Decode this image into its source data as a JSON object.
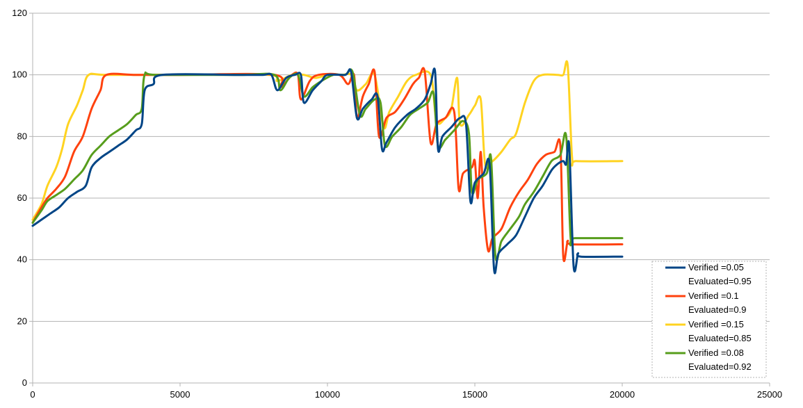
{
  "chart_data": {
    "type": "line",
    "title": "",
    "xlabel": "",
    "ylabel": "",
    "xlim": [
      0,
      25000
    ],
    "ylim": [
      0,
      120
    ],
    "xticks": [
      0,
      5000,
      10000,
      15000,
      20000,
      25000
    ],
    "yticks": [
      0,
      20,
      40,
      60,
      80,
      100,
      120
    ],
    "x_tick_labels": [
      "0",
      "5000",
      "10000",
      "15000",
      "20000",
      "25000"
    ],
    "y_tick_labels": [
      "0",
      "20",
      "40",
      "60",
      "80",
      "100",
      "120"
    ],
    "grid": "horizontal",
    "legend_position": "bottom-right",
    "series": [
      {
        "name_line1": "Verified =0.05",
        "name_line2": "Evaluated=0.95",
        "color": "#004586",
        "points": [
          [
            0,
            51
          ],
          [
            300,
            53
          ],
          [
            600,
            55
          ],
          [
            900,
            57
          ],
          [
            1200,
            60
          ],
          [
            1500,
            62
          ],
          [
            1800,
            64
          ],
          [
            2000,
            70
          ],
          [
            2300,
            73
          ],
          [
            2600,
            75
          ],
          [
            2900,
            77
          ],
          [
            3200,
            79
          ],
          [
            3500,
            82
          ],
          [
            3700,
            84
          ],
          [
            3800,
            95
          ],
          [
            4100,
            97
          ],
          [
            4400,
            100
          ],
          [
            7000,
            100
          ],
          [
            7800,
            100
          ],
          [
            8100,
            100
          ],
          [
            8300,
            95
          ],
          [
            8600,
            99
          ],
          [
            8900,
            100
          ],
          [
            9100,
            100
          ],
          [
            9200,
            91
          ],
          [
            9500,
            95
          ],
          [
            9800,
            98
          ],
          [
            10000,
            100
          ],
          [
            10600,
            100
          ],
          [
            10800,
            101
          ],
          [
            11000,
            86
          ],
          [
            11200,
            89
          ],
          [
            11500,
            92
          ],
          [
            11700,
            93
          ],
          [
            11850,
            76
          ],
          [
            12000,
            78
          ],
          [
            12300,
            83
          ],
          [
            12700,
            87
          ],
          [
            13000,
            89
          ],
          [
            13300,
            92
          ],
          [
            13500,
            97
          ],
          [
            13650,
            101
          ],
          [
            13750,
            76
          ],
          [
            13900,
            80
          ],
          [
            14200,
            83
          ],
          [
            14500,
            86
          ],
          [
            14700,
            84
          ],
          [
            14850,
            59
          ],
          [
            15000,
            65
          ],
          [
            15300,
            68
          ],
          [
            15500,
            71
          ],
          [
            15650,
            37
          ],
          [
            15800,
            42
          ],
          [
            16100,
            45
          ],
          [
            16400,
            48
          ],
          [
            16700,
            54
          ],
          [
            17000,
            60
          ],
          [
            17300,
            64
          ],
          [
            17600,
            69
          ],
          [
            17800,
            71
          ],
          [
            18000,
            72
          ],
          [
            18100,
            71
          ],
          [
            18200,
            77
          ],
          [
            18350,
            38
          ],
          [
            18500,
            42
          ],
          [
            18600,
            41
          ],
          [
            20000,
            41
          ]
        ]
      },
      {
        "name_line1": "Verified =0.1",
        "name_line2": "Evaluated=0.9",
        "color": "#ff420e",
        "points": [
          [
            0,
            52
          ],
          [
            300,
            57
          ],
          [
            500,
            60
          ],
          [
            800,
            63
          ],
          [
            1100,
            67
          ],
          [
            1400,
            75
          ],
          [
            1700,
            80
          ],
          [
            2000,
            89
          ],
          [
            2300,
            95
          ],
          [
            2500,
            100
          ],
          [
            3500,
            100
          ],
          [
            5000,
            100
          ],
          [
            8200,
            100
          ],
          [
            8400,
            96
          ],
          [
            8800,
            100
          ],
          [
            9000,
            100
          ],
          [
            9100,
            92
          ],
          [
            9400,
            98
          ],
          [
            9700,
            100
          ],
          [
            10400,
            100
          ],
          [
            10700,
            97
          ],
          [
            10900,
            100
          ],
          [
            11000,
            86
          ],
          [
            11200,
            93
          ],
          [
            11400,
            97
          ],
          [
            11600,
            101
          ],
          [
            11750,
            80
          ],
          [
            12000,
            86
          ],
          [
            12300,
            88
          ],
          [
            12600,
            92
          ],
          [
            12900,
            97
          ],
          [
            13100,
            99
          ],
          [
            13300,
            101
          ],
          [
            13500,
            78
          ],
          [
            13700,
            84
          ],
          [
            14000,
            86
          ],
          [
            14300,
            88
          ],
          [
            14450,
            63
          ],
          [
            14600,
            68
          ],
          [
            14900,
            70
          ],
          [
            15000,
            72
          ],
          [
            15100,
            60
          ],
          [
            15200,
            75
          ],
          [
            15300,
            57
          ],
          [
            15450,
            43
          ],
          [
            15600,
            47
          ],
          [
            15900,
            50
          ],
          [
            16200,
            57
          ],
          [
            16500,
            62
          ],
          [
            16800,
            66
          ],
          [
            17100,
            71
          ],
          [
            17400,
            74
          ],
          [
            17700,
            75
          ],
          [
            17900,
            77
          ],
          [
            18000,
            41
          ],
          [
            18150,
            46
          ],
          [
            18300,
            45
          ],
          [
            20000,
            45
          ]
        ]
      },
      {
        "name_line1": "Verified =0.15",
        "name_line2": "Evaluated=0.85",
        "color": "#ffd320",
        "points": [
          [
            0,
            53
          ],
          [
            300,
            58
          ],
          [
            500,
            64
          ],
          [
            800,
            70
          ],
          [
            1000,
            76
          ],
          [
            1200,
            84
          ],
          [
            1500,
            90
          ],
          [
            1700,
            95
          ],
          [
            1900,
            100
          ],
          [
            2500,
            100
          ],
          [
            5000,
            100
          ],
          [
            8000,
            100
          ],
          [
            8300,
            98
          ],
          [
            8800,
            100
          ],
          [
            9200,
            100
          ],
          [
            9600,
            99
          ],
          [
            10000,
            100
          ],
          [
            10500,
            100
          ],
          [
            10800,
            100
          ],
          [
            11000,
            95
          ],
          [
            11300,
            97
          ],
          [
            11600,
            100
          ],
          [
            11900,
            83
          ],
          [
            12100,
            88
          ],
          [
            12400,
            93
          ],
          [
            12700,
            98
          ],
          [
            13000,
            100
          ],
          [
            13500,
            100
          ],
          [
            13700,
            85
          ],
          [
            14000,
            86
          ],
          [
            14200,
            89
          ],
          [
            14400,
            99
          ],
          [
            14500,
            84
          ],
          [
            14800,
            87
          ],
          [
            15000,
            90
          ],
          [
            15200,
            92
          ],
          [
            15350,
            71
          ],
          [
            15600,
            72
          ],
          [
            15900,
            75
          ],
          [
            16200,
            79
          ],
          [
            16400,
            81
          ],
          [
            16700,
            91
          ],
          [
            17000,
            98
          ],
          [
            17300,
            100
          ],
          [
            17800,
            100
          ],
          [
            18000,
            100
          ],
          [
            18150,
            103
          ],
          [
            18300,
            73
          ],
          [
            18450,
            72
          ],
          [
            20000,
            72
          ]
        ]
      },
      {
        "name_line1": "Verified =0.08",
        "name_line2": "Evaluated=0.92",
        "color": "#579d1c",
        "points": [
          [
            0,
            52
          ],
          [
            300,
            56
          ],
          [
            500,
            59
          ],
          [
            800,
            61
          ],
          [
            1100,
            63
          ],
          [
            1400,
            66
          ],
          [
            1700,
            69
          ],
          [
            2000,
            74
          ],
          [
            2300,
            77
          ],
          [
            2600,
            80
          ],
          [
            2900,
            82
          ],
          [
            3200,
            84
          ],
          [
            3500,
            87
          ],
          [
            3700,
            89
          ],
          [
            3800,
            100
          ],
          [
            4200,
            100
          ],
          [
            7000,
            100
          ],
          [
            8200,
            100
          ],
          [
            8400,
            95
          ],
          [
            8700,
            99
          ],
          [
            9000,
            100
          ],
          [
            9200,
            93
          ],
          [
            9500,
            96
          ],
          [
            9800,
            98
          ],
          [
            10200,
            100
          ],
          [
            10600,
            100
          ],
          [
            10850,
            101
          ],
          [
            11100,
            87
          ],
          [
            11300,
            89
          ],
          [
            11600,
            92
          ],
          [
            11800,
            91
          ],
          [
            11950,
            77
          ],
          [
            12200,
            80
          ],
          [
            12500,
            83
          ],
          [
            12800,
            87
          ],
          [
            13100,
            89
          ],
          [
            13400,
            91
          ],
          [
            13600,
            94
          ],
          [
            13750,
            77
          ],
          [
            14000,
            79
          ],
          [
            14300,
            82
          ],
          [
            14600,
            85
          ],
          [
            14800,
            81
          ],
          [
            14900,
            62
          ],
          [
            15100,
            66
          ],
          [
            15400,
            68
          ],
          [
            15550,
            73
          ],
          [
            15700,
            41
          ],
          [
            15900,
            46
          ],
          [
            16200,
            50
          ],
          [
            16500,
            54
          ],
          [
            16700,
            58
          ],
          [
            17000,
            62
          ],
          [
            17300,
            67
          ],
          [
            17600,
            72
          ],
          [
            17900,
            74
          ],
          [
            18100,
            80
          ],
          [
            18250,
            47
          ],
          [
            18400,
            47
          ],
          [
            20000,
            47
          ]
        ]
      }
    ]
  }
}
